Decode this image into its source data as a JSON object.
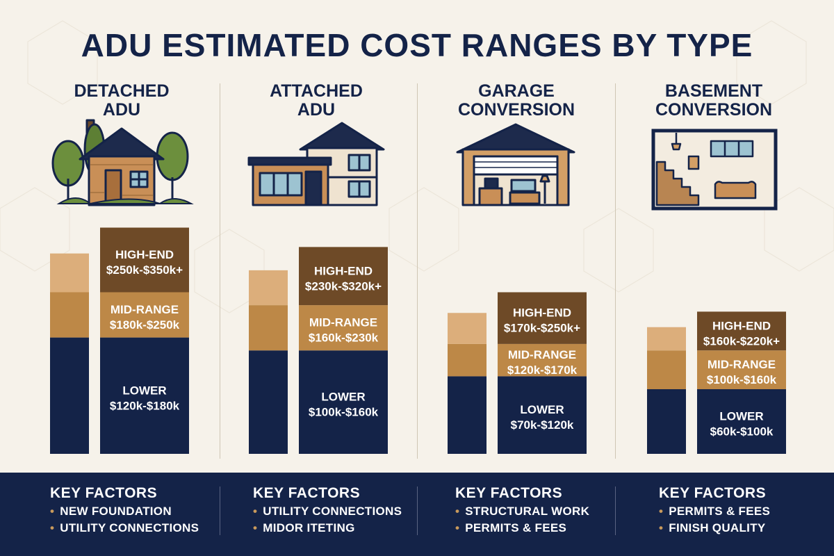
{
  "title": "ADU ESTIMATED COST RANGES BY TYPE",
  "colors": {
    "navy": "#142348",
    "mid_brown": "#bd8847",
    "dark_brown": "#6e4a27",
    "light_tan": "#dcae7b",
    "background": "#f6f2ea"
  },
  "columns": [
    {
      "title_lines": [
        "DETACHED",
        "ADU"
      ],
      "illustration": "detached-house-with-trees",
      "tiers": [
        {
          "tier": "LOWER",
          "range": "$120k-$180k"
        },
        {
          "tier": "MID-RANGE",
          "range": "$180k-$250k"
        },
        {
          "tier": "HIGH-END",
          "range": "$250k-$350k+"
        }
      ],
      "key_factors": {
        "title": "KEY FACTORS",
        "items": [
          "NEW FOUNDATION",
          "UTILITY CONNECTIONS"
        ]
      }
    },
    {
      "title_lines": [
        "ATTACHED",
        "ADU"
      ],
      "illustration": "attached-house",
      "tiers": [
        {
          "tier": "LOWER",
          "range": "$100k-$160k"
        },
        {
          "tier": "MID-RANGE",
          "range": "$160k-$230k"
        },
        {
          "tier": "HIGH-END",
          "range": "$230k-$320k+"
        }
      ],
      "key_factors": {
        "title": "KEY FACTORS",
        "items": [
          "UTILITY CONNECTIONS",
          "MIDOR ITETING"
        ]
      }
    },
    {
      "title_lines": [
        "GARAGE",
        "CONVERSION"
      ],
      "illustration": "garage-conversion",
      "tiers": [
        {
          "tier": "LOWER",
          "range": "$70k-$120k"
        },
        {
          "tier": "MID-RANGE",
          "range": "$120k-$170k"
        },
        {
          "tier": "HIGH-END",
          "range": "$170k-$250k+"
        }
      ],
      "key_factors": {
        "title": "KEY FACTORS",
        "items": [
          "STRUCTURAL WORK",
          "PERMITS & FEES"
        ]
      }
    },
    {
      "title_lines": [
        "BASEMENT",
        "CONVERSION"
      ],
      "illustration": "basement-conversion",
      "tiers": [
        {
          "tier": "LOWER",
          "range": "$60k-$100k"
        },
        {
          "tier": "MID-RANGE",
          "range": "$100k-$160k"
        },
        {
          "tier": "HIGH-END",
          "range": "$160k-$220k+"
        }
      ],
      "key_factors": {
        "title": "KEY FACTORS",
        "items": [
          "PERMITS & FEES",
          "FINISH QUALITY"
        ]
      }
    }
  ],
  "chart_data": {
    "type": "bar",
    "stacked": true,
    "title": "ADU ESTIMATED COST RANGES BY TYPE",
    "categories": [
      "DETACHED ADU",
      "ATTACHED ADU",
      "GARAGE CONVERSION",
      "BASEMENT CONVERSION"
    ],
    "unit": "$k",
    "series": [
      {
        "name": "LOWER",
        "color": "#142348",
        "ranges": [
          [
            120,
            180
          ],
          [
            100,
            160
          ],
          [
            70,
            120
          ],
          [
            60,
            100
          ]
        ]
      },
      {
        "name": "MID-RANGE",
        "color": "#bd8847",
        "ranges": [
          [
            180,
            250
          ],
          [
            160,
            230
          ],
          [
            120,
            170
          ],
          [
            100,
            160
          ]
        ]
      },
      {
        "name": "HIGH-END",
        "color": "#6e4a27",
        "ranges": [
          [
            250,
            350
          ],
          [
            230,
            320
          ],
          [
            170,
            250
          ],
          [
            160,
            220
          ]
        ]
      }
    ],
    "grid": false,
    "legend": "none"
  }
}
